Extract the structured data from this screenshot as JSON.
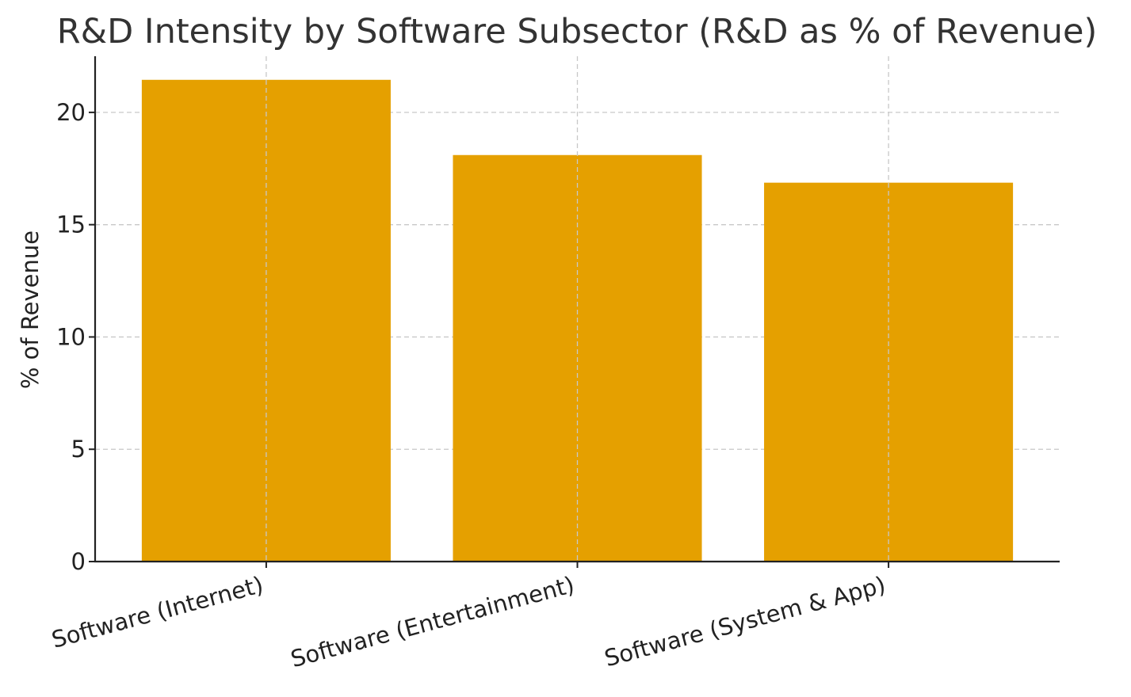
{
  "chart_data": {
    "type": "bar",
    "title": "R&D Intensity by Software Subsector (R&D as % of Revenue)",
    "xlabel": "",
    "ylabel": "% of Revenue",
    "categories": [
      "Software (Internet)",
      "Software (Entertainment)",
      "Software (System & App)"
    ],
    "values": [
      21.45,
      18.1,
      16.87
    ],
    "ylim": [
      0,
      22.5
    ],
    "yticks": [
      0,
      5,
      10,
      15,
      20
    ],
    "bar_color": "#E5A000",
    "grid": true,
    "legend": "none"
  }
}
